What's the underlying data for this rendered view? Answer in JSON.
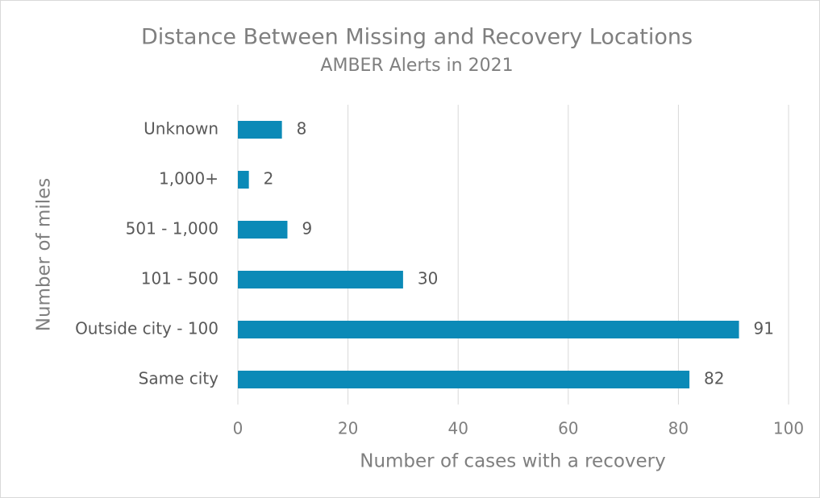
{
  "chart_data": {
    "type": "bar",
    "orientation": "horizontal",
    "title": "Distance Between Missing and Recovery Locations",
    "subtitle": "AMBER Alerts in 2021",
    "x_label": "Number of cases with a recovery",
    "y_label": "Number of miles",
    "categories": [
      "Unknown",
      "1,000+",
      "501 - 1,000",
      "101 - 500",
      "Outside city - 100",
      "Same city"
    ],
    "values": [
      8,
      2,
      9,
      30,
      91,
      82
    ],
    "color": "#0b8ab7",
    "xlim": [
      0,
      100
    ],
    "xticks": [
      0,
      20,
      40,
      60,
      80,
      100
    ],
    "grid": true
  }
}
